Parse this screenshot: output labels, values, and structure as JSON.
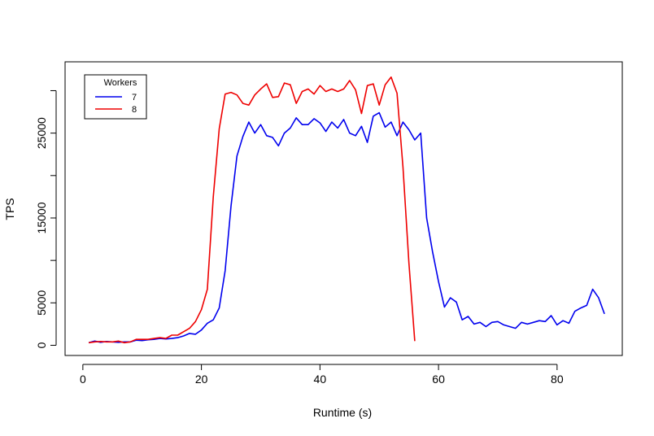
{
  "chart_data": {
    "type": "line",
    "title": "",
    "xlabel": "Runtime (s)",
    "ylabel": "TPS",
    "xlim": [
      -3,
      91
    ],
    "ylim": [
      -1200,
      33400
    ],
    "x_ticks": [
      0,
      20,
      40,
      60,
      80
    ],
    "y_ticks": [
      0,
      5000,
      10000,
      15000,
      20000,
      25000,
      30000
    ],
    "y_tick_labels": [
      "0",
      "5000",
      "",
      "15000",
      "",
      "25000",
      ""
    ],
    "grid": false,
    "legend": {
      "title": "Workers",
      "position": "top-left"
    },
    "series": [
      {
        "name": "7",
        "color": "#0000ee",
        "x": [
          1,
          2,
          3,
          4,
          5,
          6,
          7,
          8,
          9,
          10,
          11,
          12,
          13,
          14,
          15,
          16,
          17,
          18,
          19,
          20,
          21,
          22,
          23,
          24,
          25,
          26,
          27,
          28,
          29,
          30,
          31,
          32,
          33,
          34,
          35,
          36,
          37,
          38,
          39,
          40,
          41,
          42,
          43,
          44,
          45,
          46,
          47,
          48,
          49,
          50,
          51,
          52,
          53,
          54,
          55,
          56,
          57,
          58,
          59,
          60,
          61,
          62,
          63,
          64,
          65,
          66,
          67,
          68,
          69,
          70,
          71,
          72,
          73,
          74,
          75,
          76,
          77,
          78,
          79,
          80,
          81,
          82,
          83,
          84,
          85,
          86,
          87,
          88
        ],
        "y": [
          300,
          500,
          350,
          450,
          400,
          350,
          400,
          400,
          600,
          550,
          650,
          700,
          800,
          750,
          800,
          900,
          1100,
          1400,
          1300,
          1800,
          2600,
          3000,
          4400,
          8800,
          16400,
          22300,
          24600,
          26300,
          25000,
          26000,
          24700,
          24500,
          23500,
          25000,
          25600,
          26800,
          26000,
          26000,
          26700,
          26200,
          25200,
          26300,
          25600,
          26600,
          25000,
          24700,
          25800,
          23900,
          27000,
          27400,
          25700,
          26300,
          24700,
          26300,
          25400,
          24200,
          25000,
          15000,
          11000,
          7500,
          4500,
          5600,
          5100,
          3000,
          3400,
          2500,
          2700,
          2200,
          2700,
          2800,
          2400,
          2200,
          2000,
          2700,
          2500,
          2700,
          2900,
          2800,
          3500,
          2400,
          2900,
          2600,
          4000,
          4400,
          4700,
          6600,
          5600,
          3700
        ]
      },
      {
        "name": "8",
        "color": "#ee0000",
        "x": [
          1,
          2,
          3,
          4,
          5,
          6,
          7,
          8,
          9,
          10,
          11,
          12,
          13,
          14,
          15,
          16,
          17,
          18,
          19,
          20,
          21,
          22,
          23,
          24,
          25,
          26,
          27,
          28,
          29,
          30,
          31,
          32,
          33,
          34,
          35,
          36,
          37,
          38,
          39,
          40,
          41,
          42,
          43,
          44,
          45,
          46,
          47,
          48,
          49,
          50,
          51,
          52,
          53,
          54,
          55,
          56
        ],
        "y": [
          300,
          400,
          450,
          400,
          400,
          500,
          300,
          400,
          700,
          700,
          700,
          800,
          900,
          800,
          1200,
          1200,
          1600,
          2000,
          2800,
          4200,
          6600,
          17500,
          25500,
          29600,
          29800,
          29500,
          28500,
          28300,
          29500,
          30200,
          30800,
          29200,
          29300,
          30900,
          30700,
          28500,
          29900,
          30200,
          29600,
          30600,
          29900,
          30200,
          29900,
          30200,
          31200,
          30100,
          27300,
          30600,
          30800,
          28300,
          30700,
          31600,
          29700,
          21000,
          9700,
          500
        ]
      }
    ]
  }
}
